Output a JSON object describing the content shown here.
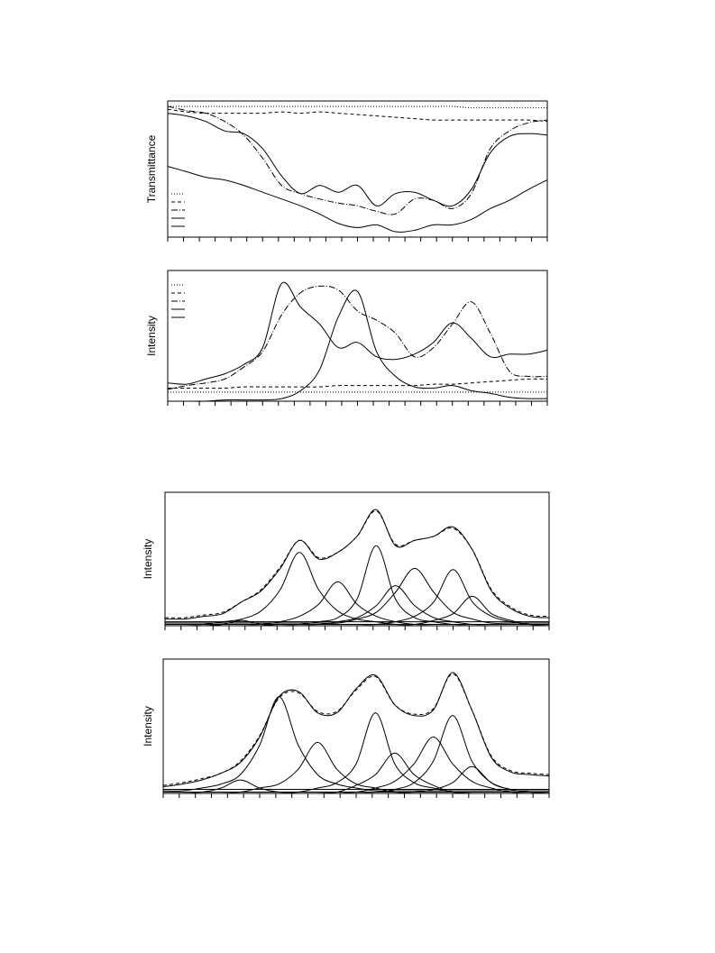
{
  "chart_data": [
    {
      "type": "line",
      "y_label": "Transmittance",
      "xlim": [
        0,
        100
      ],
      "ylim": [
        0,
        100
      ],
      "legend": true,
      "x": [
        0,
        5,
        10,
        15,
        20,
        25,
        30,
        35,
        40,
        45,
        50,
        55,
        60,
        65,
        70,
        75,
        80,
        85,
        90,
        95,
        100
      ],
      "series": [
        {
          "style": "dotted",
          "color": "#000",
          "values": [
            96,
            96,
            96,
            96,
            96,
            96,
            96,
            96,
            96,
            96,
            96,
            96,
            96,
            96,
            96,
            96,
            95,
            95,
            95,
            95,
            95
          ]
        },
        {
          "style": "dashed",
          "color": "#000",
          "values": [
            94,
            92,
            91,
            91,
            91,
            91,
            92,
            91,
            92,
            91,
            90,
            89,
            88,
            87,
            86,
            86,
            86,
            86,
            86,
            86,
            85
          ]
        },
        {
          "style": "dashdot",
          "color": "#000",
          "values": [
            96,
            93,
            91,
            85,
            75,
            58,
            38,
            32,
            28,
            25,
            23,
            19,
            17,
            28,
            27,
            21,
            32,
            65,
            78,
            84,
            86
          ]
        },
        {
          "style": "solid",
          "color": "#000",
          "values": [
            91,
            89,
            85,
            78,
            76,
            65,
            45,
            32,
            38,
            33,
            38,
            23,
            32,
            33,
            27,
            23,
            35,
            62,
            74,
            76,
            75
          ]
        },
        {
          "style": "solid",
          "color": "#000",
          "values": [
            52,
            48,
            44,
            42,
            38,
            33,
            28,
            23,
            17,
            10,
            7,
            9,
            4,
            5,
            9,
            9,
            13,
            21,
            27,
            35,
            42
          ]
        }
      ]
    },
    {
      "type": "line",
      "y_label": "Intensity",
      "xlim": [
        0,
        100
      ],
      "ylim": [
        0,
        100
      ],
      "legend": true,
      "x": [
        0,
        5,
        10,
        15,
        20,
        25,
        30,
        35,
        40,
        45,
        50,
        55,
        60,
        65,
        70,
        75,
        80,
        85,
        90,
        95,
        100
      ],
      "series": [
        {
          "style": "dotted",
          "color": "#000",
          "values": [
            7,
            7,
            7,
            7,
            7,
            7,
            7,
            7,
            7,
            7,
            7,
            7,
            7,
            7,
            7,
            7,
            7,
            7,
            7,
            7,
            7
          ]
        },
        {
          "style": "dashed",
          "color": "#000",
          "values": [
            10,
            10,
            10,
            10,
            11,
            11,
            11,
            11,
            11,
            12,
            12,
            12,
            12,
            12,
            13,
            13,
            14,
            15,
            16,
            17,
            17
          ]
        },
        {
          "style": "dashdot",
          "color": "#000",
          "values": [
            9,
            12,
            14,
            17,
            26,
            38,
            66,
            83,
            88,
            85,
            69,
            62,
            52,
            34,
            41,
            59,
            76,
            52,
            23,
            19,
            19
          ]
        },
        {
          "style": "solid",
          "color": "#000",
          "values": [
            14,
            13,
            17,
            21,
            28,
            41,
            90,
            72,
            59,
            41,
            45,
            34,
            32,
            36,
            45,
            60,
            48,
            34,
            36,
            36,
            39
          ]
        },
        {
          "style": "solid",
          "color": "#000",
          "values": [
            0,
            0,
            0,
            1,
            1,
            1,
            2,
            8,
            24,
            65,
            84,
            38,
            19,
            11,
            10,
            12,
            8,
            6,
            3,
            2,
            2
          ]
        }
      ]
    },
    {
      "type": "line",
      "y_label": "Intensity",
      "xlim": [
        0,
        100
      ],
      "ylim": [
        0,
        100
      ],
      "legend": false,
      "x": [
        0,
        5,
        10,
        15,
        20,
        25,
        30,
        35,
        40,
        45,
        50,
        55,
        60,
        65,
        70,
        75,
        80,
        85,
        90,
        95,
        100
      ],
      "series": [
        {
          "style": "solid",
          "color": "#000",
          "values": [
            5,
            5,
            7,
            9,
            18,
            26,
            43,
            64,
            50,
            55,
            67,
            87,
            60,
            64,
            67,
            74,
            57,
            26,
            13,
            7,
            6
          ]
        },
        {
          "style": "dashed",
          "color": "#000",
          "values": [
            6,
            6,
            8,
            10,
            18,
            27,
            44,
            64,
            51,
            55,
            67,
            86,
            61,
            64,
            67,
            73,
            57,
            27,
            14,
            8,
            7
          ]
        },
        {
          "style": "solid",
          "color": "#000",
          "values": [
            0,
            0,
            0,
            1,
            4,
            1,
            0,
            0,
            0,
            0,
            0,
            0,
            0,
            0,
            0,
            0,
            0,
            0,
            0,
            0,
            0
          ]
        },
        {
          "style": "solid",
          "color": "#000",
          "values": [
            1,
            1,
            1,
            3,
            5,
            11,
            27,
            55,
            27,
            11,
            5,
            3,
            1,
            1,
            1,
            1,
            1,
            1,
            1,
            1,
            1
          ]
        },
        {
          "style": "solid",
          "color": "#000",
          "values": [
            1,
            1,
            1,
            1,
            1,
            1,
            3,
            7,
            16,
            33,
            16,
            7,
            3,
            1,
            1,
            1,
            1,
            1,
            1,
            1,
            1
          ]
        },
        {
          "style": "solid",
          "color": "#000",
          "values": [
            1,
            1,
            1,
            1,
            1,
            1,
            1,
            1,
            3,
            6,
            20,
            60,
            20,
            6,
            3,
            1,
            1,
            1,
            1,
            1,
            1
          ]
        },
        {
          "style": "solid",
          "color": "#000",
          "values": [
            1,
            1,
            1,
            1,
            1,
            1,
            1,
            1,
            1,
            3,
            6,
            15,
            30,
            15,
            6,
            3,
            1,
            1,
            1,
            1,
            1
          ]
        },
        {
          "style": "solid",
          "color": "#000",
          "values": [
            2,
            2,
            2,
            2,
            2,
            2,
            2,
            2,
            2,
            2,
            5,
            10,
            25,
            43,
            25,
            10,
            5,
            2,
            2,
            2,
            2
          ]
        },
        {
          "style": "solid",
          "color": "#000",
          "values": [
            1,
            1,
            1,
            1,
            1,
            1,
            1,
            1,
            1,
            1,
            1,
            1,
            3,
            7,
            18,
            42,
            18,
            7,
            3,
            1,
            1
          ]
        },
        {
          "style": "solid",
          "color": "#000",
          "values": [
            1,
            1,
            1,
            1,
            1,
            1,
            1,
            1,
            1,
            1,
            1,
            1,
            1,
            1,
            4,
            9,
            22,
            9,
            4,
            1,
            1
          ]
        },
        {
          "style": "solid",
          "color": "#000",
          "values": [
            3,
            3,
            3,
            3,
            3,
            3,
            3,
            3,
            3,
            3,
            3,
            3,
            3,
            3,
            3,
            3,
            3,
            3,
            3,
            3,
            3
          ]
        }
      ]
    },
    {
      "type": "line",
      "y_label": "Intensity",
      "xlim": [
        0,
        100
      ],
      "ylim": [
        0,
        100
      ],
      "legend": false,
      "x": [
        0,
        5,
        10,
        15,
        20,
        25,
        30,
        35,
        40,
        45,
        50,
        55,
        60,
        65,
        70,
        75,
        80,
        85,
        90,
        95,
        100
      ],
      "series": [
        {
          "style": "solid",
          "color": "#000",
          "values": [
            5,
            7,
            10,
            15,
            23,
            42,
            72,
            76,
            60,
            60,
            78,
            88,
            66,
            58,
            62,
            90,
            62,
            27,
            16,
            14,
            13
          ]
        },
        {
          "style": "dashed",
          "color": "#000",
          "values": [
            6,
            8,
            11,
            15,
            24,
            43,
            71,
            75,
            61,
            61,
            77,
            87,
            66,
            59,
            63,
            89,
            62,
            28,
            17,
            15,
            14
          ]
        },
        {
          "style": "solid",
          "color": "#000",
          "values": [
            1,
            1,
            1,
            4,
            10,
            4,
            1,
            1,
            1,
            1,
            1,
            1,
            1,
            1,
            1,
            1,
            1,
            1,
            1,
            1,
            1
          ]
        },
        {
          "style": "solid",
          "color": "#000",
          "values": [
            2,
            2,
            4,
            7,
            14,
            36,
            72,
            36,
            14,
            7,
            4,
            2,
            2,
            2,
            2,
            2,
            2,
            2,
            2,
            2,
            2
          ]
        },
        {
          "style": "solid",
          "color": "#000",
          "values": [
            1,
            1,
            1,
            1,
            1,
            4,
            7,
            18,
            38,
            18,
            7,
            4,
            1,
            1,
            1,
            1,
            1,
            1,
            1,
            1,
            1
          ]
        },
        {
          "style": "solid",
          "color": "#000",
          "values": [
            1,
            1,
            1,
            1,
            1,
            1,
            1,
            1,
            4,
            8,
            22,
            60,
            22,
            8,
            4,
            1,
            1,
            1,
            1,
            1,
            1
          ]
        },
        {
          "style": "solid",
          "color": "#000",
          "values": [
            1,
            1,
            1,
            1,
            1,
            1,
            1,
            1,
            1,
            1,
            6,
            14,
            30,
            14,
            6,
            1,
            1,
            1,
            1,
            1,
            1
          ]
        },
        {
          "style": "solid",
          "color": "#000",
          "values": [
            1,
            1,
            1,
            1,
            1,
            1,
            1,
            1,
            1,
            1,
            1,
            4,
            9,
            22,
            42,
            22,
            9,
            4,
            1,
            1,
            1
          ]
        },
        {
          "style": "solid",
          "color": "#000",
          "values": [
            1,
            1,
            1,
            1,
            1,
            1,
            1,
            1,
            1,
            1,
            1,
            1,
            3,
            8,
            24,
            58,
            24,
            8,
            3,
            1,
            1
          ]
        },
        {
          "style": "solid",
          "color": "#000",
          "values": [
            1,
            1,
            1,
            1,
            1,
            1,
            1,
            1,
            1,
            1,
            1,
            1,
            1,
            1,
            3,
            8,
            20,
            8,
            3,
            1,
            1
          ]
        },
        {
          "style": "solid",
          "color": "#000",
          "values": [
            3,
            3,
            3,
            3,
            3,
            3,
            3,
            3,
            3,
            3,
            3,
            3,
            3,
            3,
            3,
            3,
            3,
            3,
            3,
            3,
            3
          ]
        }
      ]
    }
  ]
}
